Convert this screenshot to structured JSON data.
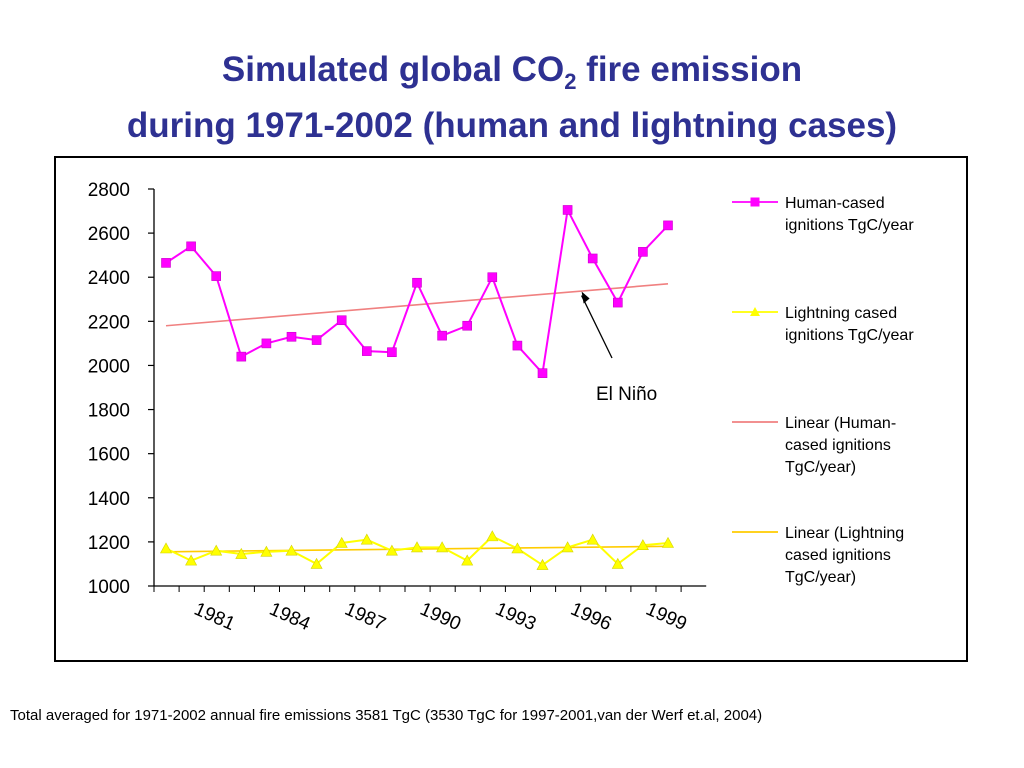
{
  "title": {
    "line1_pre": "Simulated global CO",
    "line1_sub": "2",
    "line1_post": " fire emission",
    "line2": "during 1971-2002 (human and lightning cases)"
  },
  "footnote": "Total averaged for 1971-2002 annual fire emissions 3581 TgC  (3530 TgC for 1997-2001,van der Werf et.al, 2004)",
  "chart_data": {
    "type": "line",
    "x": [
      1979,
      1980,
      1981,
      1982,
      1983,
      1984,
      1985,
      1986,
      1987,
      1988,
      1989,
      1990,
      1991,
      1992,
      1993,
      1994,
      1995,
      1996,
      1997,
      1998,
      1999,
      2000
    ],
    "xtick_labels": [
      "1981",
      "1984",
      "1987",
      "1990",
      "1993",
      "1996",
      "1999"
    ],
    "ylim": [
      1000,
      2800
    ],
    "yticks": [
      1000,
      1200,
      1400,
      1600,
      1800,
      2000,
      2200,
      2400,
      2600,
      2800
    ],
    "grid": false,
    "legend_position": "right",
    "series": [
      {
        "name": "Human-cased ignitions TgC/year",
        "legend_lines": [
          "Human-cased",
          "ignitions TgC/year"
        ],
        "color": "#ff00ff",
        "marker": "square",
        "values": [
          2465,
          2540,
          2405,
          2040,
          2100,
          2130,
          2115,
          2205,
          2065,
          2060,
          2375,
          2135,
          2180,
          2400,
          2090,
          1965,
          2705,
          2485,
          2285,
          2515,
          2635,
          null
        ]
      },
      {
        "name": "Lightning cased ignitions TgC/year",
        "legend_lines": [
          "Lightning cased",
          "ignitions TgC/year"
        ],
        "color": "#ffff00",
        "marker": "triangle",
        "values": [
          1170,
          1115,
          1160,
          1145,
          1155,
          1160,
          1100,
          1195,
          1210,
          1160,
          1175,
          1175,
          1115,
          1225,
          1170,
          1095,
          1175,
          1210,
          1100,
          1185,
          1195,
          null
        ]
      },
      {
        "name": "Linear (Human-cased ignitions TgC/year)",
        "legend_lines": [
          "Linear (Human-",
          "cased ignitions",
          "TgC/year)"
        ],
        "color": "#f08080",
        "marker": "none",
        "trend_from": 2180,
        "trend_to": 2370
      },
      {
        "name": "Linear (Lightning cased ignitions TgC/year)",
        "legend_lines": [
          "Linear (Lightning",
          "cased ignitions",
          "TgC/year)"
        ],
        "color": "#ffcc00",
        "marker": "none",
        "trend_from": 1155,
        "trend_to": 1180
      }
    ],
    "annotation": {
      "text": "El Niño",
      "target_x": 1995,
      "target_y": 2335
    }
  }
}
